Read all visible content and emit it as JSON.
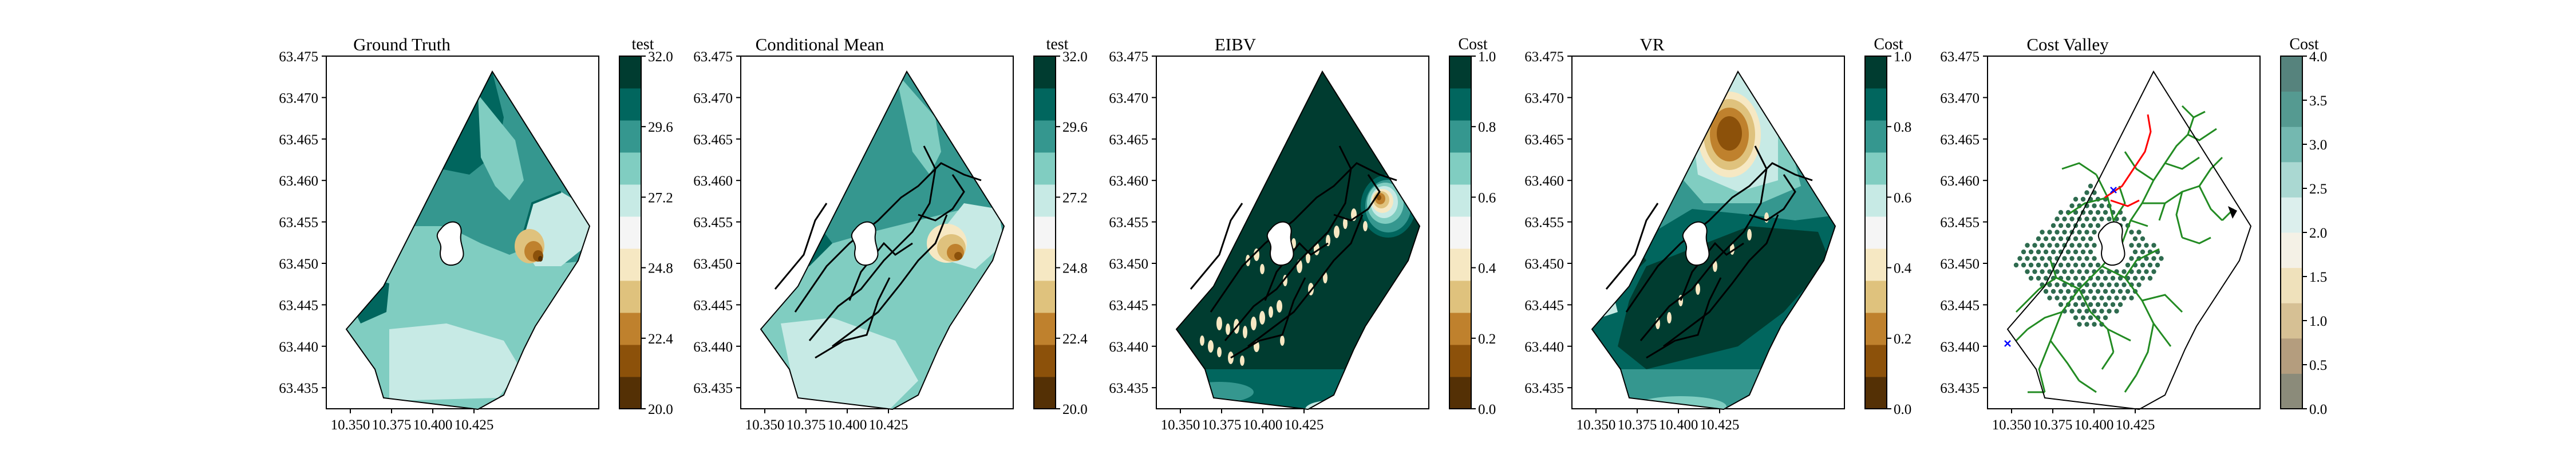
{
  "figure": {
    "panels": [
      {
        "title": "Ground Truth",
        "cbar_label": "test",
        "cbar_ticks": [
          "20.0",
          "22.4",
          "24.8",
          "27.2",
          "29.6",
          "32.0"
        ]
      },
      {
        "title": "Conditional Mean",
        "cbar_label": "test",
        "cbar_ticks": [
          "20.0",
          "22.4",
          "24.8",
          "27.2",
          "29.6",
          "32.0"
        ]
      },
      {
        "title": "EIBV",
        "cbar_label": "Cost",
        "cbar_ticks": [
          "0.0",
          "0.2",
          "0.4",
          "0.6",
          "0.8",
          "1.0"
        ]
      },
      {
        "title": "VR",
        "cbar_label": "Cost",
        "cbar_ticks": [
          "0.0",
          "0.2",
          "0.4",
          "0.6",
          "0.8",
          "1.0"
        ]
      },
      {
        "title": "Cost Valley",
        "cbar_label": "Cost",
        "cbar_ticks": [
          "0.0",
          "0.5",
          "1.0",
          "1.5",
          "2.0",
          "2.5",
          "3.0",
          "3.5",
          "4.0"
        ]
      }
    ],
    "colors": {
      "brbg": [
        "#543005",
        "#8c510a",
        "#bf812d",
        "#dfc27d",
        "#f6e8c3",
        "#f5f5f5",
        "#c7eae5",
        "#80cdc1",
        "#35978f",
        "#01665e",
        "#003c30"
      ],
      "cost_valley": [
        "#8b8b7a",
        "#b49d7e",
        "#d6c094",
        "#efe1bb",
        "#f4f1e6",
        "#dcefed",
        "#aad8d2",
        "#74b8b0",
        "#559a91",
        "#56837d"
      ],
      "path": "#000000",
      "tree": "#228b22",
      "route": "#ff0000",
      "samples": "#2e6b4f"
    }
  },
  "chart_data": [
    {
      "type": "heatmap",
      "title": "Ground Truth",
      "colorbar_label": "test",
      "colorbar_range": [
        20.0,
        32.0
      ],
      "xticks": [
        "10.350",
        "10.375",
        "10.400",
        "10.425"
      ],
      "yticks": [
        "63.475",
        "63.470",
        "63.465",
        "63.460",
        "63.455",
        "63.450",
        "63.445",
        "63.440",
        "63.435"
      ]
    },
    {
      "type": "heatmap",
      "title": "Conditional Mean",
      "colorbar_label": "test",
      "colorbar_range": [
        20.0,
        32.0
      ],
      "xticks": [
        "10.350",
        "10.375",
        "10.400",
        "10.425"
      ],
      "yticks": [
        "63.475",
        "63.470",
        "63.465",
        "63.460",
        "63.455",
        "63.450",
        "63.445",
        "63.440",
        "63.435"
      ]
    },
    {
      "type": "heatmap",
      "title": "EIBV",
      "colorbar_label": "Cost",
      "colorbar_range": [
        0.0,
        1.0
      ],
      "xticks": [
        "10.350",
        "10.375",
        "10.400",
        "10.425"
      ],
      "yticks": [
        "63.475",
        "63.470",
        "63.465",
        "63.460",
        "63.455",
        "63.450",
        "63.445",
        "63.440",
        "63.435"
      ]
    },
    {
      "type": "heatmap",
      "title": "VR",
      "colorbar_label": "Cost",
      "colorbar_range": [
        0.0,
        1.0
      ],
      "xticks": [
        "10.350",
        "10.375",
        "10.400",
        "10.425"
      ],
      "yticks": [
        "63.475",
        "63.470",
        "63.465",
        "63.460",
        "63.455",
        "63.450",
        "63.445",
        "63.440",
        "63.435"
      ]
    },
    {
      "type": "heatmap",
      "title": "Cost Valley",
      "colorbar_label": "Cost",
      "colorbar_range": [
        0.0,
        4.0
      ],
      "xticks": [
        "10.350",
        "10.375",
        "10.400",
        "10.425"
      ],
      "yticks": [
        "63.475",
        "63.470",
        "63.465",
        "63.460",
        "63.455",
        "63.450",
        "63.445",
        "63.440",
        "63.435"
      ]
    }
  ]
}
